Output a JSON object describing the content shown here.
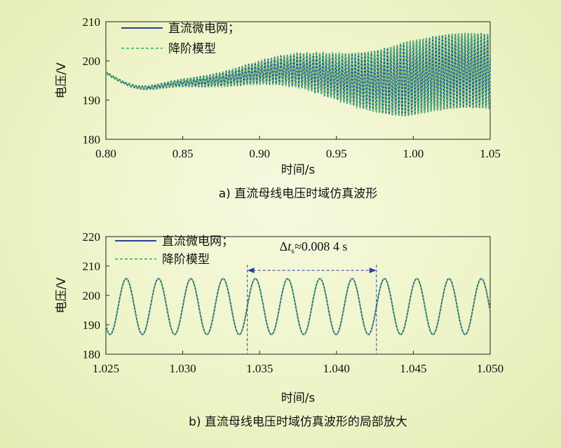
{
  "colors": {
    "background": "#eef4c8",
    "series_microgrid": "#2b3f9c",
    "series_reduced": "#5cc26a",
    "annotation": "#2b3f9c"
  },
  "chart_data": [
    {
      "type": "line",
      "title": "",
      "caption": "a) 直流母线电压时域仿真波形",
      "xlabel": "时间/s",
      "ylabel": "电压/V",
      "xlim": [
        0.8,
        1.05
      ],
      "ylim": [
        180,
        210
      ],
      "xticks": [
        "0.80",
        "0.85",
        "0.90",
        "0.95",
        "1.00",
        "1.05"
      ],
      "yticks": [
        "180",
        "190",
        "200",
        "210"
      ],
      "legend_position": "top-left",
      "series": [
        {
          "name": "直流微电网；",
          "style": "solid",
          "start_value": 197.6,
          "mean": 196.2,
          "final_amplitude": 9.5,
          "oscillation_period_s": 0.0021
        },
        {
          "name": "降阶模型",
          "style": "dashed",
          "start_value": 197.6,
          "mean": 196.2,
          "final_amplitude": 9.5,
          "oscillation_period_s": 0.0021
        }
      ]
    },
    {
      "type": "line",
      "title": "",
      "caption": "b) 直流母线电压时域仿真波形的局部放大",
      "xlabel": "时间/s",
      "ylabel": "电压/V",
      "xlim": [
        1.025,
        1.05
      ],
      "ylim": [
        180,
        220
      ],
      "xticks": [
        "1.025",
        "1.030",
        "1.035",
        "1.040",
        "1.045",
        "1.050"
      ],
      "yticks": [
        "180",
        "190",
        "200",
        "210",
        "220"
      ],
      "legend_position": "top-left",
      "series": [
        {
          "name": "直流微电网；",
          "style": "solid",
          "mean": 196.2,
          "amplitude": 9.5,
          "period_s": 0.0021
        },
        {
          "name": "降阶模型",
          "style": "dashed",
          "mean": 196.2,
          "amplitude": 9.5,
          "period_s": 0.0021
        }
      ],
      "annotation": {
        "prefix": "Δ",
        "var": "t",
        "sub": "s",
        "value": "≈0.008 4 s",
        "x_start": 1.0342,
        "x_end": 1.0426,
        "y": 208.5
      }
    }
  ]
}
